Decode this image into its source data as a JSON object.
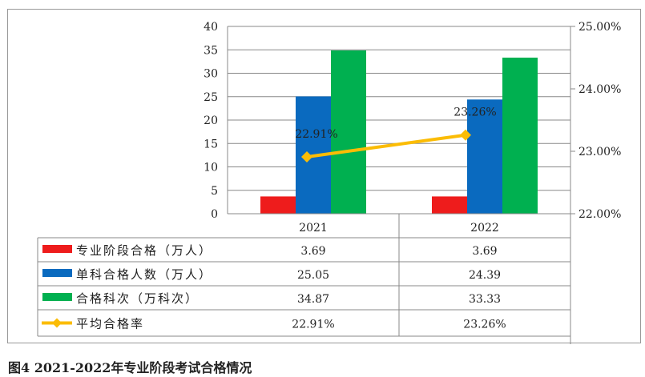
{
  "chart_data": {
    "type": "bar",
    "categories": [
      "2021",
      "2022"
    ],
    "series": [
      {
        "name": "专业阶段合格（万人）",
        "values": [
          3.69,
          3.69
        ],
        "labels": [
          "3.69",
          "3.69"
        ],
        "color": "#ee1c1c",
        "axis": "left"
      },
      {
        "name": "单科合格人数（万人）",
        "values": [
          25.05,
          24.39
        ],
        "labels": [
          "25.05",
          "24.39"
        ],
        "color": "#0a6abf",
        "axis": "left"
      },
      {
        "name": "合格科次（万科次）",
        "values": [
          34.87,
          33.33
        ],
        "labels": [
          "34.87",
          "33.33"
        ],
        "color": "#00b050",
        "axis": "left"
      },
      {
        "name": "平均合格率",
        "type": "line",
        "values": [
          22.91,
          23.26
        ],
        "labels": [
          "22.91%",
          "23.26%"
        ],
        "color": "#fbbc05",
        "axis": "right"
      }
    ],
    "y_left": {
      "ylim": [
        0,
        40
      ],
      "ticks": [
        "0",
        "5",
        "10",
        "15",
        "20",
        "25",
        "30",
        "35",
        "40"
      ]
    },
    "y_right": {
      "ylim": [
        22,
        25
      ],
      "ticks": [
        "22.00%",
        "23.00%",
        "24.00%",
        "25.00%"
      ]
    },
    "grid": true,
    "legend": "data-table"
  },
  "caption": "图4  2021-2022年专业阶段考试合格情况"
}
